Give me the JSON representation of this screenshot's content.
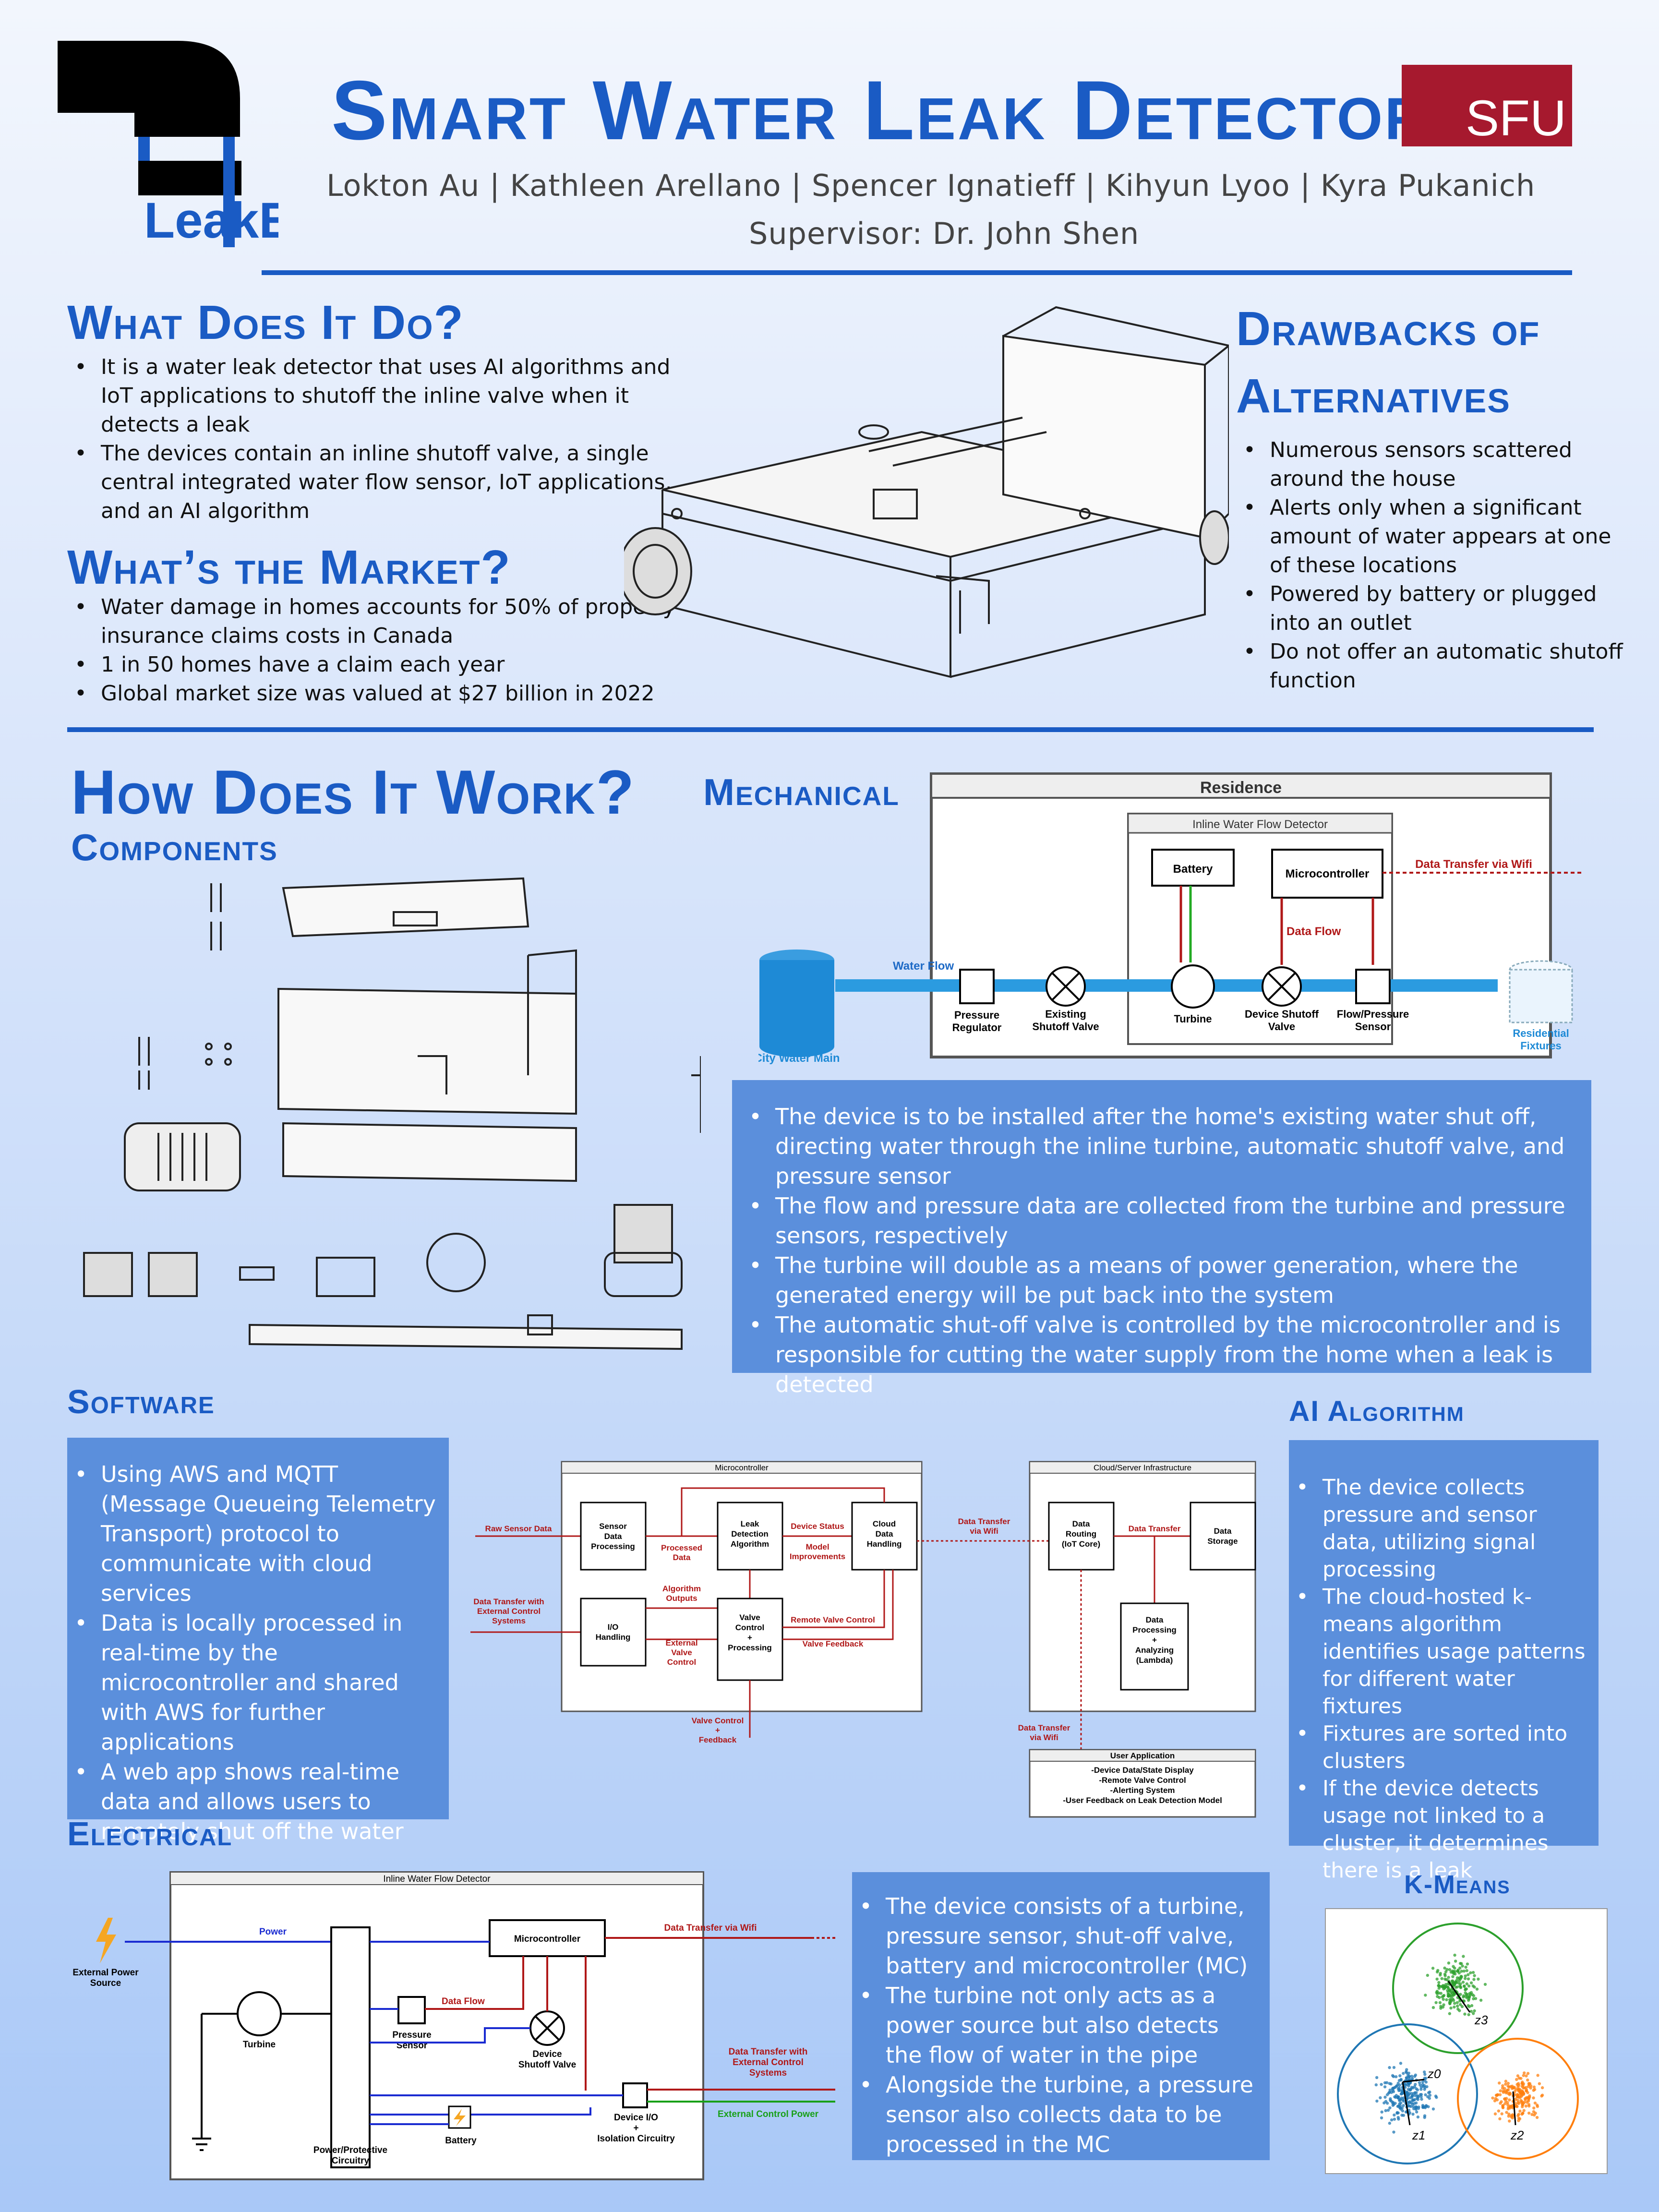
{
  "header": {
    "title": "Smart Water Leak Detector",
    "authors": "Lokton Au | Kathleen Arellano | Spencer Ignatieff | Kihyun Lyoo | Kyra Pukanich",
    "supervisor": "Supervisor: Dr. John Shen",
    "logo_text": "LeakE",
    "sfu_text": "SFU"
  },
  "what_it_does": {
    "title": "What Does It Do?",
    "bullets": [
      "It is a water leak detector that uses AI algorithms and IoT applications to shutoff the inline valve when it detects a leak",
      "The devices contain an inline shutoff valve, a single central integrated water flow sensor, IoT applications, and an AI algorithm"
    ]
  },
  "market": {
    "title": "What’s the Market?",
    "bullets": [
      "Water damage in homes accounts for 50% of property insurance claims costs in Canada",
      "1 in 50 homes have a claim each year",
      "Global market size was valued at $27 billion in 2022"
    ]
  },
  "drawbacks": {
    "title_line1": "Drawbacks of",
    "title_line2": "Alternatives",
    "bullets": [
      "Numerous sensors scattered around the house",
      "Alerts only when a significant amount of water appears at one of these locations",
      "Powered by battery or plugged into an outlet",
      "Do not offer an automatic shutoff function"
    ]
  },
  "how": {
    "title": "How Does It Work?",
    "components_title": "Components",
    "mechanical_title": "Mechanical"
  },
  "mechanical_diagram": {
    "residence": "Residence",
    "detector": "Inline Water Flow Detector",
    "battery": "Battery",
    "microcontroller": "Microcontroller",
    "wifi": "Data Transfer via Wifi",
    "data_flow": "Data Flow",
    "water_flow": "Water Flow",
    "city": "City Water Main",
    "pressure_reg_1": "Pressure",
    "pressure_reg_2": "Regulator",
    "existing_1": "Existing",
    "existing_2": "Shutoff Valve",
    "turbine": "Turbine",
    "device_valve_1": "Device Shutoff",
    "device_valve_2": "Valve",
    "flow_sensor_1": "Flow/Pressure",
    "flow_sensor_2": "Sensor",
    "fixtures_1": "Residential",
    "fixtures_2": "Fixtures"
  },
  "mechanical_panel": {
    "bullets": [
      "The device is to be installed after the home's existing water shut off, directing water through the inline turbine, automatic shutoff valve, and pressure sensor",
      "The flow and pressure data are collected from the turbine and pressure sensors, respectively",
      "The turbine will double as a means of power generation, where the generated energy will be put back into the system",
      "The automatic shut-off valve is controlled by the microcontroller and is responsible for cutting the water supply from the home when a leak is detected"
    ]
  },
  "software": {
    "title": "Software",
    "bullets": [
      "Using AWS and MQTT (Message Queueing Telemetry Transport) protocol to communicate with cloud services",
      "Data is locally processed in real-time by the microcontroller and shared with AWS for further applications",
      "A web app shows real-time data and allows users to remotely shut off the water"
    ]
  },
  "software_diagram": {
    "mc": "Microcontroller",
    "cloud": "Cloud/Server Infrastructure",
    "raw": "Raw Sensor Data",
    "sdp": [
      "Sensor",
      "Data",
      "Processing"
    ],
    "processed": [
      "Processed",
      "Data"
    ],
    "leak": [
      "Leak",
      "Detection",
      "Algorithm"
    ],
    "device_status": "Device Status",
    "model": [
      "Model",
      "Improvements"
    ],
    "cdh": [
      "Cloud",
      "Data",
      "Handling"
    ],
    "ext": [
      "Data Transfer with",
      "External Control",
      "Systems"
    ],
    "algo_out": [
      "Algorithm",
      "Outputs"
    ],
    "io": [
      "I/O",
      "Handling"
    ],
    "ext_valve": [
      "External",
      "Valve",
      "Control"
    ],
    "vcp": [
      "Valve",
      "Control",
      "+",
      "Processing"
    ],
    "remote": "Remote Valve Control",
    "feedback": "Valve Feedback",
    "vc_fb": [
      "Valve Control",
      "+",
      "Feedback"
    ],
    "wifi": [
      "Data Transfer",
      "via Wifi"
    ],
    "routing": [
      "Data",
      "Routing",
      "(IoT Core)"
    ],
    "data_transfer": "Data Transfer",
    "storage": [
      "Data",
      "Storage"
    ],
    "lambda": [
      "Data",
      "Processing",
      "+",
      "Analyzing",
      "(Lambda)"
    ],
    "wifi2": [
      "Data Transfer",
      "via Wifi"
    ],
    "user_app": "User Application",
    "user_items": [
      "-Device Data/State Display",
      "-Remote Valve Control",
      "-Alerting System",
      "-User Feedback on Leak Detection Model"
    ]
  },
  "ai": {
    "title": "AI Algorithm",
    "bullets": [
      "The device collects pressure and sensor data, utilizing signal processing",
      "The cloud-hosted k-means algorithm identifies usage patterns for different water fixtures",
      "Fixtures are sorted into clusters",
      "If the device detects usage not linked to a cluster, it determines there is a leak"
    ]
  },
  "electrical": {
    "title": "Electrical",
    "bullets": [
      "The device consists of a turbine, pressure sensor, shut-off valve, battery and microcontroller (MC)",
      "The turbine not only acts as a power source but also detects the flow of water in the pipe",
      "Alongside the turbine, a pressure sensor also collects data to be processed in the MC"
    ]
  },
  "electrical_diagram": {
    "box": "Inline Water Flow Detector",
    "ext_power": [
      "External Power",
      "Source"
    ],
    "power": "Power",
    "mc": "Microcontroller",
    "wifi": "Data Transfer via Wifi",
    "turbine": "Turbine",
    "pressure": [
      "Pressure",
      "Sensor"
    ],
    "data_flow": "Data Flow",
    "valve": [
      "Device",
      "Shutoff Valve"
    ],
    "ext": [
      "Data Transfer with",
      "External Control",
      "Systems"
    ],
    "ext_power_out": "External Control Power",
    "device_io": [
      "Device I/O",
      "+",
      "Isolation Circuitry"
    ],
    "battery": "Battery",
    "ppc": [
      "Power/Protective",
      "Circuitry"
    ]
  },
  "kmeans": {
    "title": "K-Means",
    "labels": [
      "z3",
      "z0",
      "z1",
      "z2"
    ],
    "colors": {
      "green": "#2ca02c",
      "blue": "#1f77b4",
      "orange": "#ff7f0e"
    }
  }
}
